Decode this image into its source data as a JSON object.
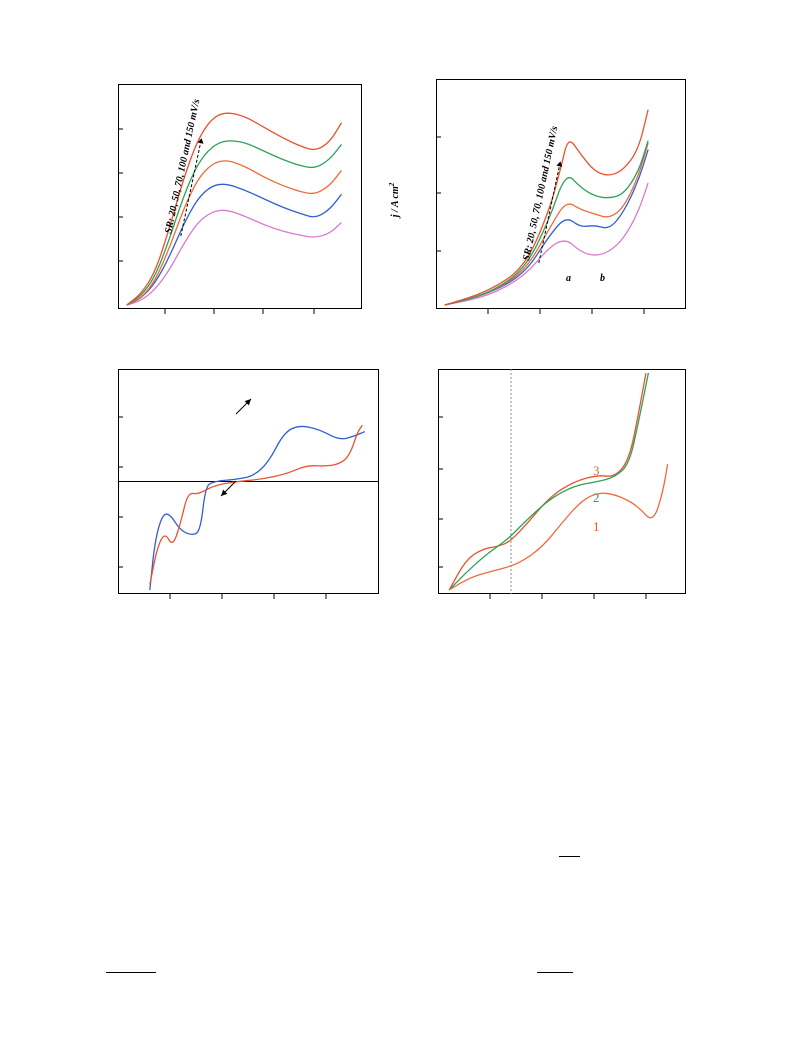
{
  "colors": {
    "orange": "#e8532d",
    "green": "#2aa25a",
    "blue": "#2f5fd0",
    "magenta": "#d97ad0",
    "orange2": "#f06a3a",
    "grid": "#888888"
  },
  "chart_data": [
    {
      "type": "line",
      "annotation": "SR: 20, 50, 70, 100 and 150 mV/s",
      "xlim": [
        0,
        1
      ],
      "ylim": [
        0,
        1
      ],
      "series": [
        {
          "color_key": "magenta",
          "points": [
            [
              0.02,
              0.0
            ],
            [
              0.08,
              0.02
            ],
            [
              0.14,
              0.07
            ],
            [
              0.2,
              0.16
            ],
            [
              0.26,
              0.28
            ],
            [
              0.32,
              0.38
            ],
            [
              0.38,
              0.43
            ],
            [
              0.44,
              0.44
            ],
            [
              0.52,
              0.41
            ],
            [
              0.6,
              0.37
            ],
            [
              0.68,
              0.34
            ],
            [
              0.76,
              0.32
            ],
            [
              0.82,
              0.31
            ],
            [
              0.88,
              0.33
            ],
            [
              0.93,
              0.38
            ]
          ]
        },
        {
          "color_key": "blue",
          "points": [
            [
              0.02,
              0.0
            ],
            [
              0.08,
              0.03
            ],
            [
              0.14,
              0.1
            ],
            [
              0.2,
              0.22
            ],
            [
              0.26,
              0.37
            ],
            [
              0.32,
              0.49
            ],
            [
              0.38,
              0.55
            ],
            [
              0.44,
              0.56
            ],
            [
              0.52,
              0.53
            ],
            [
              0.6,
              0.49
            ],
            [
              0.68,
              0.45
            ],
            [
              0.76,
              0.42
            ],
            [
              0.82,
              0.4
            ],
            [
              0.88,
              0.44
            ],
            [
              0.93,
              0.51
            ]
          ]
        },
        {
          "color_key": "orange2",
          "points": [
            [
              0.02,
              0.0
            ],
            [
              0.08,
              0.03
            ],
            [
              0.14,
              0.11
            ],
            [
              0.2,
              0.26
            ],
            [
              0.26,
              0.44
            ],
            [
              0.32,
              0.58
            ],
            [
              0.38,
              0.65
            ],
            [
              0.44,
              0.67
            ],
            [
              0.52,
              0.64
            ],
            [
              0.6,
              0.59
            ],
            [
              0.68,
              0.55
            ],
            [
              0.76,
              0.52
            ],
            [
              0.82,
              0.51
            ],
            [
              0.88,
              0.55
            ],
            [
              0.93,
              0.62
            ]
          ]
        },
        {
          "color_key": "green",
          "points": [
            [
              0.02,
              0.0
            ],
            [
              0.08,
              0.04
            ],
            [
              0.14,
              0.13
            ],
            [
              0.2,
              0.3
            ],
            [
              0.26,
              0.5
            ],
            [
              0.32,
              0.65
            ],
            [
              0.38,
              0.73
            ],
            [
              0.44,
              0.76
            ],
            [
              0.52,
              0.75
            ],
            [
              0.6,
              0.71
            ],
            [
              0.68,
              0.67
            ],
            [
              0.76,
              0.64
            ],
            [
              0.82,
              0.63
            ],
            [
              0.88,
              0.67
            ],
            [
              0.93,
              0.74
            ]
          ]
        },
        {
          "color_key": "orange",
          "points": [
            [
              0.02,
              0.0
            ],
            [
              0.08,
              0.05
            ],
            [
              0.14,
              0.15
            ],
            [
              0.2,
              0.35
            ],
            [
              0.26,
              0.58
            ],
            [
              0.32,
              0.76
            ],
            [
              0.38,
              0.86
            ],
            [
              0.44,
              0.89
            ],
            [
              0.52,
              0.87
            ],
            [
              0.6,
              0.82
            ],
            [
              0.68,
              0.77
            ],
            [
              0.76,
              0.73
            ],
            [
              0.82,
              0.71
            ],
            [
              0.88,
              0.75
            ],
            [
              0.93,
              0.84
            ]
          ]
        }
      ]
    },
    {
      "type": "line",
      "ylabel": "j / A cm",
      "ylabel_sup": "2",
      "annotation": "SR: 20, 50, 70, 100 and 150 mV/s",
      "labels": [
        "a",
        "b"
      ],
      "xlim": [
        0,
        1
      ],
      "ylim": [
        0,
        1
      ],
      "series": [
        {
          "color_key": "magenta",
          "points": [
            [
              0.02,
              0.0
            ],
            [
              0.2,
              0.04
            ],
            [
              0.35,
              0.13
            ],
            [
              0.45,
              0.26
            ],
            [
              0.52,
              0.3
            ],
            [
              0.58,
              0.24
            ],
            [
              0.64,
              0.22
            ],
            [
              0.7,
              0.24
            ],
            [
              0.76,
              0.3
            ],
            [
              0.82,
              0.42
            ],
            [
              0.86,
              0.55
            ]
          ]
        },
        {
          "color_key": "blue",
          "points": [
            [
              0.02,
              0.0
            ],
            [
              0.2,
              0.05
            ],
            [
              0.35,
              0.14
            ],
            [
              0.45,
              0.31
            ],
            [
              0.52,
              0.4
            ],
            [
              0.58,
              0.35
            ],
            [
              0.64,
              0.36
            ],
            [
              0.7,
              0.34
            ],
            [
              0.76,
              0.42
            ],
            [
              0.82,
              0.56
            ],
            [
              0.86,
              0.7
            ]
          ]
        },
        {
          "color_key": "orange2",
          "points": [
            [
              0.02,
              0.0
            ],
            [
              0.2,
              0.05
            ],
            [
              0.35,
              0.15
            ],
            [
              0.45,
              0.34
            ],
            [
              0.52,
              0.47
            ],
            [
              0.58,
              0.43
            ],
            [
              0.64,
              0.41
            ],
            [
              0.7,
              0.39
            ],
            [
              0.76,
              0.44
            ],
            [
              0.82,
              0.58
            ],
            [
              0.86,
              0.73
            ]
          ]
        },
        {
          "color_key": "green",
          "points": [
            [
              0.02,
              0.0
            ],
            [
              0.2,
              0.05
            ],
            [
              0.35,
              0.16
            ],
            [
              0.45,
              0.38
            ],
            [
              0.52,
              0.6
            ],
            [
              0.58,
              0.53
            ],
            [
              0.64,
              0.49
            ],
            [
              0.7,
              0.48
            ],
            [
              0.76,
              0.5
            ],
            [
              0.82,
              0.6
            ],
            [
              0.86,
              0.74
            ]
          ]
        },
        {
          "color_key": "orange",
          "points": [
            [
              0.02,
              0.0
            ],
            [
              0.2,
              0.06
            ],
            [
              0.35,
              0.17
            ],
            [
              0.45,
              0.42
            ],
            [
              0.5,
              0.62
            ],
            [
              0.53,
              0.76
            ],
            [
              0.58,
              0.68
            ],
            [
              0.64,
              0.6
            ],
            [
              0.7,
              0.58
            ],
            [
              0.76,
              0.61
            ],
            [
              0.82,
              0.7
            ],
            [
              0.86,
              0.88
            ]
          ]
        }
      ]
    },
    {
      "type": "line",
      "xlim": [
        0,
        1
      ],
      "ylim": [
        -1,
        1
      ],
      "zero_line": true,
      "series": [
        {
          "color_key": "blue",
          "points": [
            [
              0.11,
              -1.0
            ],
            [
              0.13,
              -0.55
            ],
            [
              0.16,
              -0.3
            ],
            [
              0.19,
              -0.3
            ],
            [
              0.23,
              -0.45
            ],
            [
              0.28,
              -0.5
            ],
            [
              0.31,
              -0.45
            ],
            [
              0.33,
              -0.05
            ],
            [
              0.36,
              0.0
            ],
            [
              0.45,
              0.02
            ],
            [
              0.52,
              0.05
            ],
            [
              0.58,
              0.18
            ],
            [
              0.64,
              0.45
            ],
            [
              0.7,
              0.52
            ],
            [
              0.78,
              0.48
            ],
            [
              0.86,
              0.38
            ],
            [
              0.92,
              0.42
            ],
            [
              0.96,
              0.46
            ]
          ]
        },
        {
          "color_key": "orange",
          "points": [
            [
              0.11,
              -0.95
            ],
            [
              0.14,
              -0.6
            ],
            [
              0.17,
              -0.47
            ],
            [
              0.2,
              -0.6
            ],
            [
              0.23,
              -0.4
            ],
            [
              0.26,
              -0.1
            ],
            [
              0.3,
              -0.12
            ],
            [
              0.36,
              -0.04
            ],
            [
              0.45,
              0.0
            ],
            [
              0.55,
              0.02
            ],
            [
              0.65,
              0.07
            ],
            [
              0.73,
              0.15
            ],
            [
              0.8,
              0.14
            ],
            [
              0.86,
              0.16
            ],
            [
              0.9,
              0.24
            ],
            [
              0.93,
              0.45
            ],
            [
              0.95,
              0.52
            ]
          ]
        }
      ]
    },
    {
      "type": "line",
      "labels": [
        "3",
        "2",
        "1"
      ],
      "xlim": [
        0,
        1
      ],
      "ylim": [
        0,
        1
      ],
      "series": [
        {
          "color_key": "orange",
          "points": [
            [
              0.03,
              0.0
            ],
            [
              0.1,
              0.14
            ],
            [
              0.17,
              0.19
            ],
            [
              0.23,
              0.2
            ],
            [
              0.28,
              0.22
            ],
            [
              0.35,
              0.3
            ],
            [
              0.45,
              0.43
            ],
            [
              0.55,
              0.5
            ],
            [
              0.65,
              0.53
            ],
            [
              0.72,
              0.52
            ],
            [
              0.78,
              0.6
            ],
            [
              0.82,
              0.82
            ],
            [
              0.85,
              1.0
            ]
          ]
        },
        {
          "color_key": "green",
          "points": [
            [
              0.03,
              0.0
            ],
            [
              0.1,
              0.08
            ],
            [
              0.17,
              0.15
            ],
            [
              0.23,
              0.2
            ],
            [
              0.28,
              0.24
            ],
            [
              0.35,
              0.32
            ],
            [
              0.45,
              0.42
            ],
            [
              0.55,
              0.48
            ],
            [
              0.65,
              0.5
            ],
            [
              0.72,
              0.52
            ],
            [
              0.78,
              0.58
            ],
            [
              0.82,
              0.78
            ],
            [
              0.86,
              1.0
            ]
          ]
        },
        {
          "color_key": "orange2",
          "points": [
            [
              0.03,
              0.0
            ],
            [
              0.12,
              0.06
            ],
            [
              0.22,
              0.09
            ],
            [
              0.32,
              0.12
            ],
            [
              0.42,
              0.2
            ],
            [
              0.5,
              0.31
            ],
            [
              0.58,
              0.41
            ],
            [
              0.65,
              0.45
            ],
            [
              0.72,
              0.44
            ],
            [
              0.78,
              0.41
            ],
            [
              0.82,
              0.38
            ],
            [
              0.88,
              0.31
            ],
            [
              0.92,
              0.45
            ],
            [
              0.94,
              0.58
            ]
          ]
        }
      ]
    }
  ]
}
